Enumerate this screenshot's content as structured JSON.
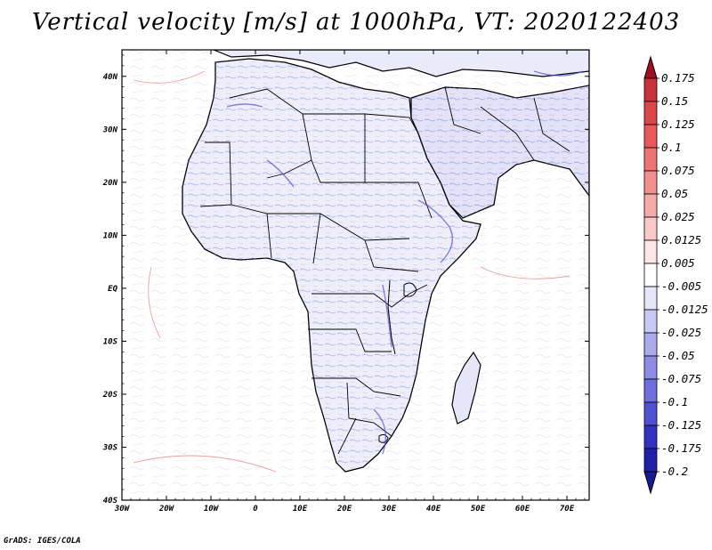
{
  "title": "Vertical velocity [m/s] at 1000hPa, VT: 2020122403",
  "credit": "GrADS: IGES/COLA",
  "map": {
    "lon_range": [
      -30,
      75
    ],
    "lat_range": [
      -40,
      45
    ],
    "lat_labels": [
      "40N",
      "30N",
      "20N",
      "10N",
      "EQ",
      "10S",
      "20S",
      "30S",
      "40S"
    ],
    "lat_values": [
      40,
      30,
      20,
      10,
      0,
      -10,
      -20,
      -30,
      -40
    ],
    "lon_labels": [
      "30W",
      "20W",
      "10W",
      "0",
      "10E",
      "20E",
      "30E",
      "40E",
      "50E",
      "60E",
      "70E"
    ],
    "lon_values": [
      -30,
      -20,
      -10,
      0,
      10,
      20,
      30,
      40,
      50,
      60,
      70
    ]
  },
  "colorbar": {
    "levels": [
      "0.175",
      "0.15",
      "0.125",
      "0.1",
      "0.075",
      "0.05",
      "0.025",
      "0.0125",
      "0.005",
      "-0.005",
      "-0.0125",
      "-0.025",
      "-0.05",
      "-0.075",
      "-0.1",
      "-0.125",
      "-0.175",
      "-0.2"
    ],
    "colors": [
      "#b01c2a",
      "#c8323a",
      "#dc4646",
      "#e85a5a",
      "#ee7474",
      "#f29090",
      "#f6aaaa",
      "#fac8c8",
      "#fde6e6",
      "#ffffff",
      "#e6e6fa",
      "#c8c8f4",
      "#aaaaee",
      "#8c8ce6",
      "#6e6ede",
      "#5050d2",
      "#3232c0",
      "#2020a8",
      "#14148c"
    ],
    "top_arrow_color": "#a01020",
    "bottom_arrow_color": "#1a1a90"
  }
}
